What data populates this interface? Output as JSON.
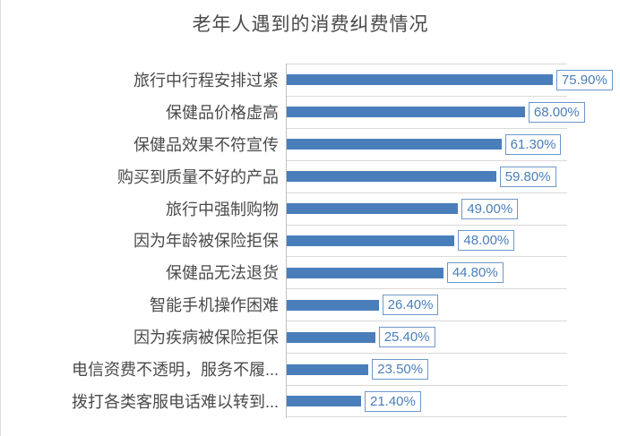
{
  "page": {
    "background": "#ffffff",
    "left_border_color": "#dcdcdc"
  },
  "chart_data": {
    "type": "bar",
    "orientation": "horizontal",
    "title": "老年人遇到的消费纠费情况",
    "categories": [
      "旅行中行程安排过紧",
      "保健品价格虚高",
      "保健品效果不符宣传",
      "购买到质量不好的产品",
      "旅行中强制购物",
      "因为年龄被保险拒保",
      "保健品无法退货",
      "智能手机操作困难",
      "因为疾病被保险拒保",
      "电信资费不透明，服务不履...",
      "拨打各类客服电话难以转到..."
    ],
    "values": [
      75.9,
      68.0,
      61.3,
      59.8,
      49.0,
      48.0,
      44.8,
      26.4,
      25.4,
      23.5,
      21.4
    ],
    "value_labels": [
      "75.90%",
      "68.00%",
      "61.30%",
      "59.80%",
      "49.00%",
      "48.00%",
      "44.80%",
      "26.40%",
      "25.40%",
      "23.50%",
      "21.40%"
    ],
    "xlabel": "",
    "ylabel": "",
    "xlim": [
      0,
      80
    ],
    "grid": true,
    "legend": false,
    "bar_color": "#4a7ebb",
    "value_label_color": "#4a7ebb",
    "value_label_border_color": "#6f97c8",
    "gridline_color": "#d9d9d9",
    "axis_line_color": "#bfbfbf",
    "title_color": "#4a4a4a",
    "category_label_color": "#4a4a4a"
  }
}
